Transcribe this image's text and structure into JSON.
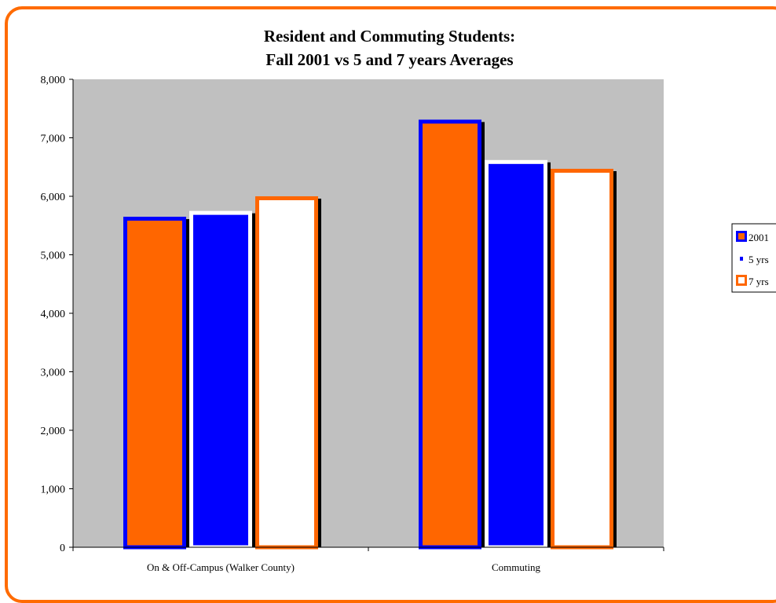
{
  "chart_data": {
    "type": "bar",
    "title": [
      "Resident and Commuting Students:",
      "Fall 2001 vs 5 and 7 years Averages"
    ],
    "categories": [
      "On & Off-Campus (Walker County)",
      "Commuting"
    ],
    "series": [
      {
        "name": "2001",
        "values": [
          5650,
          7310
        ],
        "fill": "#ff6600",
        "border": "#0000ff"
      },
      {
        "name": "5 yrs",
        "values": [
          5750,
          6620
        ],
        "fill": "#0000ff",
        "border": "#ffffff"
      },
      {
        "name": "7 yrs",
        "values": [
          6000,
          6470
        ],
        "fill": "#ffffff",
        "border": "#ff6600"
      }
    ],
    "legend_labels": [
      "2001",
      "5 yrs",
      "7 yrs"
    ],
    "ylim": [
      0,
      8000
    ],
    "yticks": [
      0,
      1000,
      2000,
      3000,
      4000,
      5000,
      6000,
      7000,
      8000
    ],
    "ytick_labels": [
      "0",
      "1,000",
      "2,000",
      "3,000",
      "4,000",
      "5,000",
      "6,000",
      "7,000",
      "8,000"
    ],
    "grid": false,
    "legend_position": "right",
    "plot_background": "#c0c0c0",
    "frame_color": "#ff6b00"
  }
}
